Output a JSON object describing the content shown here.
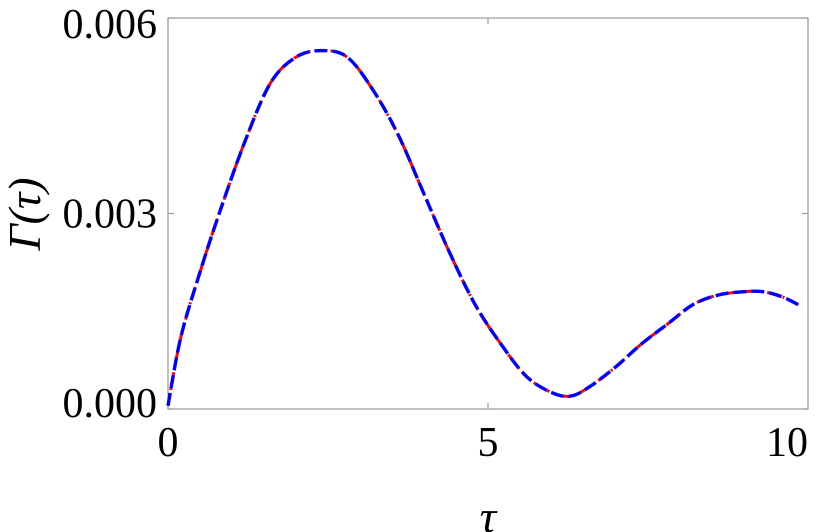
{
  "chart_data": {
    "type": "line",
    "xlabel": "τ",
    "ylabel": "Γ(τ)",
    "xlim": [
      0,
      10
    ],
    "ylim": [
      0,
      0.006
    ],
    "x_ticks": [
      "0",
      "5",
      "10"
    ],
    "y_ticks": [
      "0.000",
      "0.003",
      "0.006"
    ],
    "x_tick_values": [
      0,
      5,
      10
    ],
    "y_tick_values": [
      0,
      0.003,
      0.006
    ],
    "grid": false,
    "series": [
      {
        "color": "#ff0000",
        "style": "dash-dot",
        "x": [
          0.0,
          0.2,
          0.5,
          0.8,
          1.2,
          1.6,
          2.0,
          2.4,
          2.8,
          3.2,
          3.6,
          4.0,
          4.4,
          4.8,
          5.2,
          5.6,
          6.0,
          6.3,
          6.6,
          7.0,
          7.4,
          7.8,
          8.2,
          8.6,
          9.0,
          9.3,
          9.6,
          9.85
        ],
        "y": [
          5e-05,
          0.0011,
          0.0021,
          0.003,
          0.0041,
          0.005,
          0.0054,
          0.0055,
          0.0054,
          0.0049,
          0.0042,
          0.0033,
          0.0024,
          0.0016,
          0.001,
          0.0005,
          0.00025,
          0.0002,
          0.00035,
          0.00065,
          0.001,
          0.0013,
          0.0016,
          0.00175,
          0.0018,
          0.0018,
          0.00172,
          0.0016
        ]
      },
      {
        "color": "#0000ff",
        "style": "dashed",
        "x": [
          0.0,
          0.2,
          0.5,
          0.8,
          1.2,
          1.6,
          2.0,
          2.4,
          2.8,
          3.2,
          3.6,
          4.0,
          4.4,
          4.8,
          5.2,
          5.6,
          6.0,
          6.3,
          6.6,
          7.0,
          7.4,
          7.8,
          8.2,
          8.6,
          9.0,
          9.3,
          9.6,
          9.85
        ],
        "y": [
          5e-05,
          0.0011,
          0.0021,
          0.003,
          0.0041,
          0.005,
          0.0054,
          0.0055,
          0.0054,
          0.0049,
          0.0042,
          0.0033,
          0.0024,
          0.0016,
          0.001,
          0.0005,
          0.00025,
          0.0002,
          0.00035,
          0.00065,
          0.001,
          0.0013,
          0.0016,
          0.00175,
          0.0018,
          0.0018,
          0.00172,
          0.0016
        ]
      }
    ]
  }
}
